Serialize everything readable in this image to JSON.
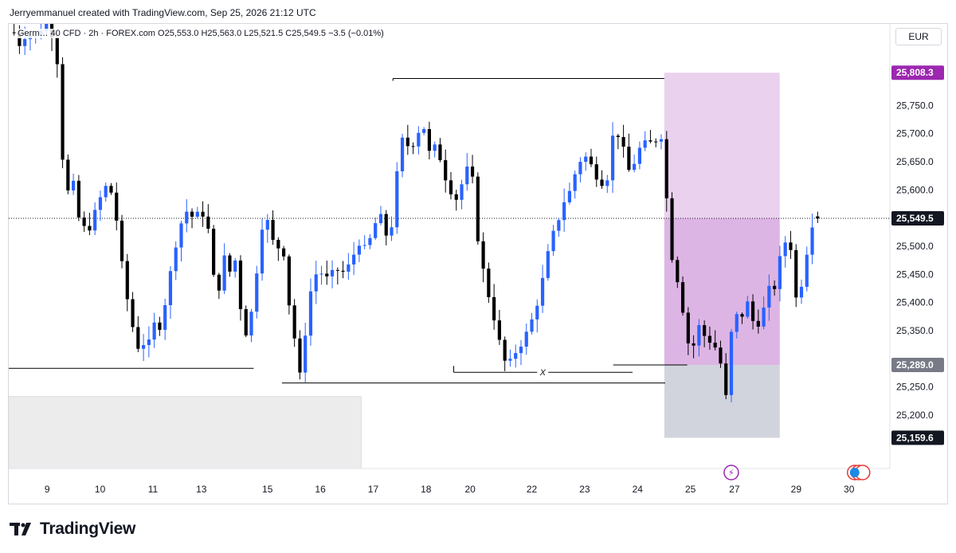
{
  "header": {
    "attribution": "Jerryemmanuel created with TradingView.com, Sep 25, 2026 21:12 UTC"
  },
  "symbol": {
    "name": "Germany 40 CFD",
    "interval": "2h",
    "exchange": "FOREX.com",
    "line": "Germ… 40 CFD · 2h · FOREX.com  O25,553.0  H25,563.0  L25,521.5  C25,549.5  −3.5 (−0.01%)"
  },
  "currency": "EUR",
  "brand": {
    "name": "TradingView"
  },
  "colors": {
    "up": "#2962ff",
    "down": "#000000",
    "target_zone": "#e1bee7",
    "stop_zone": "#d1d4dc",
    "target_tag": "#9c27b0",
    "stop_tag": "#787b86"
  },
  "price_tags": {
    "target": "25,808.3",
    "current": "25,549.5",
    "entry": "25,289.0",
    "stop": "25,159.6"
  },
  "annotation_x": "X",
  "chart_data": {
    "type": "candlestick",
    "interval": "2h",
    "ylim": [
      25105,
      25895
    ],
    "y_ticks": [
      25200,
      25250,
      25300,
      25350,
      25400,
      25450,
      25500,
      25550,
      25600,
      25650,
      25700,
      25750
    ],
    "y_tick_labels": [
      "25,200.0",
      "25,250.0",
      "25,300.0",
      "25,350.0",
      "25,400.0",
      "25,450.0",
      "25,500.0",
      "25,550.0",
      "25,600.0",
      "25,650.0",
      "25,700.0",
      "25,750.0"
    ],
    "x_ticks": [
      {
        "label": "9",
        "pos": 0.04
      },
      {
        "label": "10",
        "pos": 0.1
      },
      {
        "label": "11",
        "pos": 0.16
      },
      {
        "label": "13",
        "pos": 0.215
      },
      {
        "label": "15",
        "pos": 0.29
      },
      {
        "label": "16",
        "pos": 0.35
      },
      {
        "label": "17",
        "pos": 0.41
      },
      {
        "label": "18",
        "pos": 0.47
      },
      {
        "label": "20",
        "pos": 0.52
      },
      {
        "label": "22",
        "pos": 0.59
      },
      {
        "label": "23",
        "pos": 0.65
      },
      {
        "label": "24",
        "pos": 0.71
      },
      {
        "label": "25",
        "pos": 0.77
      },
      {
        "label": "27",
        "pos": 0.82
      },
      {
        "label": "29",
        "pos": 0.89
      },
      {
        "label": "30",
        "pos": 0.95
      }
    ],
    "anchors": [
      [
        0.0,
        25900
      ],
      [
        0.012,
        25860
      ],
      [
        0.02,
        25880
      ],
      [
        0.03,
        25870
      ],
      [
        0.045,
        25910
      ],
      [
        0.055,
        25830
      ],
      [
        0.06,
        25680
      ],
      [
        0.065,
        25585
      ],
      [
        0.072,
        25620
      ],
      [
        0.08,
        25545
      ],
      [
        0.088,
        25525
      ],
      [
        0.095,
        25545
      ],
      [
        0.105,
        25590
      ],
      [
        0.112,
        25610
      ],
      [
        0.118,
        25590
      ],
      [
        0.125,
        25520
      ],
      [
        0.13,
        25440
      ],
      [
        0.138,
        25380
      ],
      [
        0.145,
        25320
      ],
      [
        0.152,
        25330
      ],
      [
        0.158,
        25320
      ],
      [
        0.165,
        25360
      ],
      [
        0.172,
        25360
      ],
      [
        0.18,
        25420
      ],
      [
        0.19,
        25510
      ],
      [
        0.2,
        25565
      ],
      [
        0.21,
        25550
      ],
      [
        0.22,
        25560
      ],
      [
        0.228,
        25520
      ],
      [
        0.235,
        25400
      ],
      [
        0.245,
        25480
      ],
      [
        0.252,
        25450
      ],
      [
        0.258,
        25480
      ],
      [
        0.265,
        25360
      ],
      [
        0.272,
        25340
      ],
      [
        0.28,
        25440
      ],
      [
        0.29,
        25570
      ],
      [
        0.298,
        25510
      ],
      [
        0.305,
        25500
      ],
      [
        0.312,
        25490
      ],
      [
        0.318,
        25400
      ],
      [
        0.325,
        25330
      ],
      [
        0.332,
        25250
      ],
      [
        0.338,
        25380
      ],
      [
        0.345,
        25440
      ],
      [
        0.352,
        25460
      ],
      [
        0.36,
        25440
      ],
      [
        0.368,
        25450
      ],
      [
        0.375,
        25460
      ],
      [
        0.382,
        25450
      ],
      [
        0.39,
        25480
      ],
      [
        0.398,
        25510
      ],
      [
        0.405,
        25490
      ],
      [
        0.412,
        25520
      ],
      [
        0.42,
        25560
      ],
      [
        0.428,
        25520
      ],
      [
        0.435,
        25540
      ],
      [
        0.44,
        25620
      ],
      [
        0.448,
        25700
      ],
      [
        0.455,
        25670
      ],
      [
        0.463,
        25700
      ],
      [
        0.47,
        25720
      ],
      [
        0.478,
        25660
      ],
      [
        0.486,
        25680
      ],
      [
        0.494,
        25630
      ],
      [
        0.502,
        25600
      ],
      [
        0.51,
        25580
      ],
      [
        0.518,
        25640
      ],
      [
        0.526,
        25620
      ],
      [
        0.534,
        25490
      ],
      [
        0.542,
        25430
      ],
      [
        0.55,
        25380
      ],
      [
        0.558,
        25320
      ],
      [
        0.566,
        25280
      ],
      [
        0.574,
        25310
      ],
      [
        0.582,
        25330
      ],
      [
        0.59,
        25350
      ],
      [
        0.598,
        25390
      ],
      [
        0.606,
        25440
      ],
      [
        0.614,
        25500
      ],
      [
        0.622,
        25540
      ],
      [
        0.63,
        25580
      ],
      [
        0.638,
        25600
      ],
      [
        0.646,
        25650
      ],
      [
        0.654,
        25660
      ],
      [
        0.662,
        25640
      ],
      [
        0.67,
        25620
      ],
      [
        0.678,
        25610
      ],
      [
        0.686,
        25700
      ],
      [
        0.694,
        25700
      ],
      [
        0.702,
        25630
      ],
      [
        0.71,
        25650
      ],
      [
        0.718,
        25680
      ],
      [
        0.726,
        25680
      ],
      [
        0.734,
        25690
      ],
      [
        0.742,
        25700
      ],
      [
        0.75,
        25500
      ],
      [
        0.758,
        25450
      ],
      [
        0.766,
        25380
      ],
      [
        0.774,
        25300
      ],
      [
        0.782,
        25360
      ],
      [
        0.79,
        25340
      ],
      [
        0.798,
        25330
      ],
      [
        0.806,
        25310
      ],
      [
        0.814,
        25230
      ],
      [
        0.822,
        25380
      ],
      [
        0.83,
        25370
      ],
      [
        0.838,
        25400
      ],
      [
        0.846,
        25360
      ],
      [
        0.854,
        25370
      ],
      [
        0.862,
        25420
      ],
      [
        0.87,
        25430
      ],
      [
        0.878,
        25500
      ],
      [
        0.886,
        25520
      ],
      [
        0.894,
        25400
      ],
      [
        0.902,
        25450
      ],
      [
        0.91,
        25540
      ],
      [
        0.918,
        25549.5
      ]
    ],
    "levels": [
      {
        "name": "swing-high",
        "price": 25798
      },
      {
        "name": "left-support",
        "price": 25283
      },
      {
        "name": "breakout-low",
        "price": 25257
      },
      {
        "name": "equal-lows-x",
        "price": 25276
      },
      {
        "name": "entry",
        "price": 25289.0
      },
      {
        "name": "current",
        "price": 25549.5
      }
    ],
    "position": {
      "entry": 25289.0,
      "target": 25808.3,
      "stop": 25159.6
    },
    "demand_zone": {
      "top": 25233,
      "bottom": 25105
    }
  }
}
